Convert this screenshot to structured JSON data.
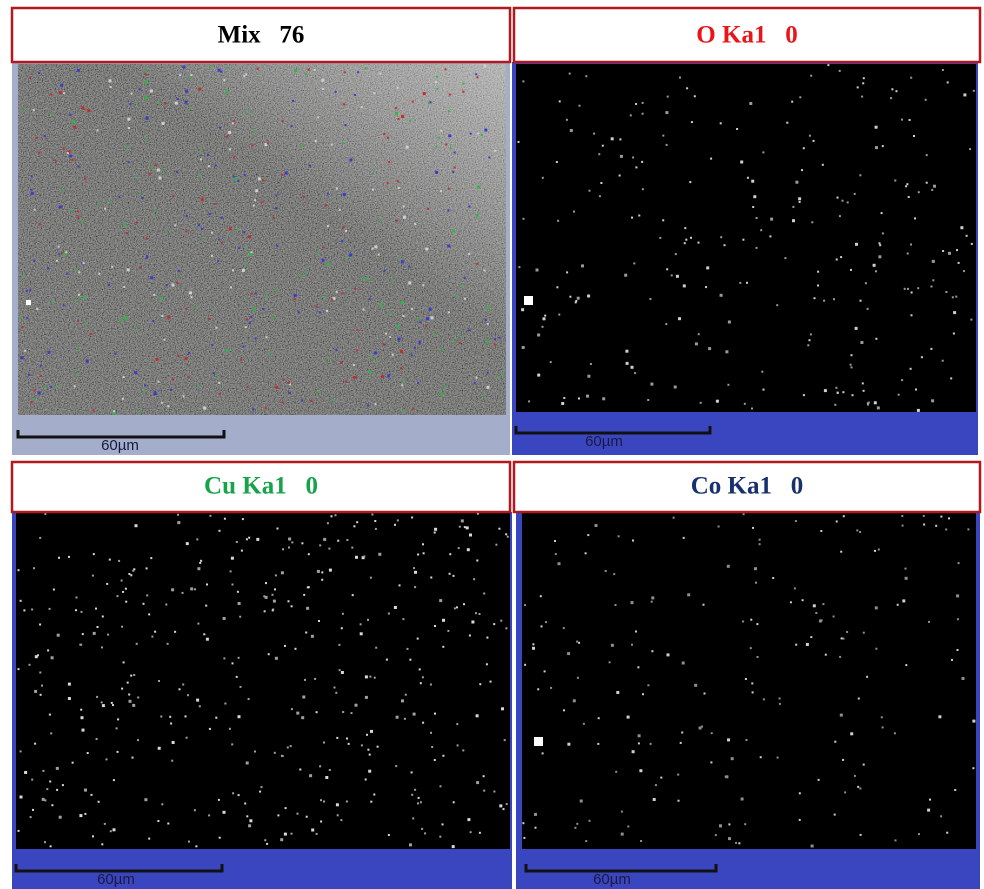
{
  "panels": [
    {
      "title": "Mix   76",
      "scale_bar": "60µm"
    },
    {
      "title": "O Ka1   0",
      "scale_bar": "60µm"
    },
    {
      "title": "Cu Ka1   0",
      "scale_bar": "60µm"
    },
    {
      "title": "Co Ka1   0",
      "scale_bar": "60µm"
    }
  ]
}
